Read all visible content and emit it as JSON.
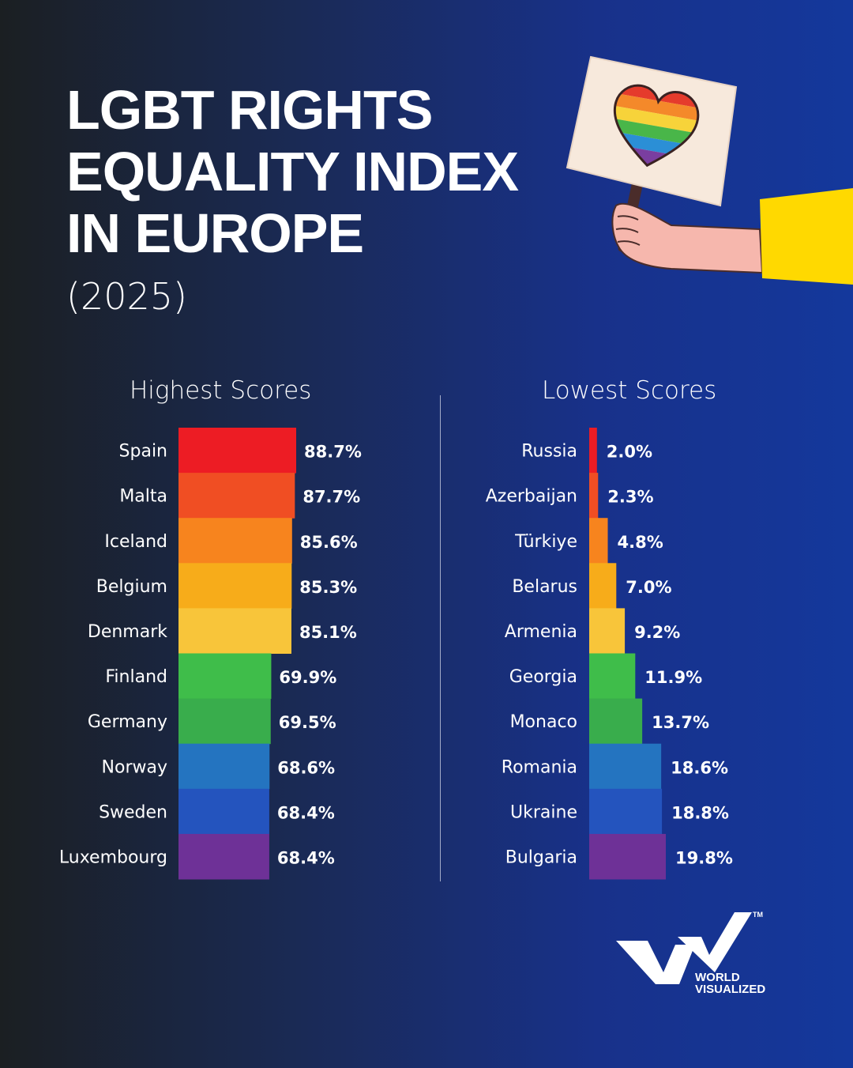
{
  "title": {
    "line1": "LGBT RIGHTS",
    "line2": "EQUALITY INDEX",
    "line3": "IN EUROPE"
  },
  "year": "(2025)",
  "logo": {
    "line1": "WORLD",
    "line2": "VISUALIZED",
    "tm": "TM"
  },
  "chart_data": [
    {
      "type": "bar",
      "orientation": "horizontal",
      "title": "Highest Scores",
      "categories": [
        "Spain",
        "Malta",
        "Iceland",
        "Belgium",
        "Denmark",
        "Finland",
        "Germany",
        "Norway",
        "Sweden",
        "Luxembourg"
      ],
      "values": [
        88.7,
        87.7,
        85.6,
        85.3,
        85.1,
        69.9,
        69.5,
        68.6,
        68.4,
        68.4
      ],
      "value_labels": [
        "88.7%",
        "87.7%",
        "85.6%",
        "85.3%",
        "85.1%",
        "69.9%",
        "69.5%",
        "68.6%",
        "68.4%",
        "68.4%"
      ],
      "colors": [
        "#ed1c24",
        "#f04e23",
        "#f7841e",
        "#f7ac1a",
        "#f8c53a",
        "#3fbd4a",
        "#39ad4c",
        "#2474c0",
        "#2454be",
        "#6e3197"
      ],
      "unit": "%"
    },
    {
      "type": "bar",
      "orientation": "horizontal",
      "title": "Lowest  Scores",
      "categories": [
        "Russia",
        "Azerbaijan",
        "Türkiye",
        "Belarus",
        "Armenia",
        "Georgia",
        "Monaco",
        "Romania",
        "Ukraine",
        "Bulgaria"
      ],
      "values": [
        2.0,
        2.3,
        4.8,
        7.0,
        9.2,
        11.9,
        13.7,
        18.6,
        18.8,
        19.8
      ],
      "value_labels": [
        "2.0%",
        "2.3%",
        "4.8%",
        "7.0%",
        "9.2%",
        "11.9%",
        "13.7%",
        "18.6%",
        "18.8%",
        "19.8%"
      ],
      "colors": [
        "#ed1c24",
        "#f04e23",
        "#f7841e",
        "#f7ac1a",
        "#f8c53a",
        "#3fbd4a",
        "#39ad4c",
        "#2474c0",
        "#2454be",
        "#6e3197"
      ],
      "unit": "%"
    }
  ]
}
